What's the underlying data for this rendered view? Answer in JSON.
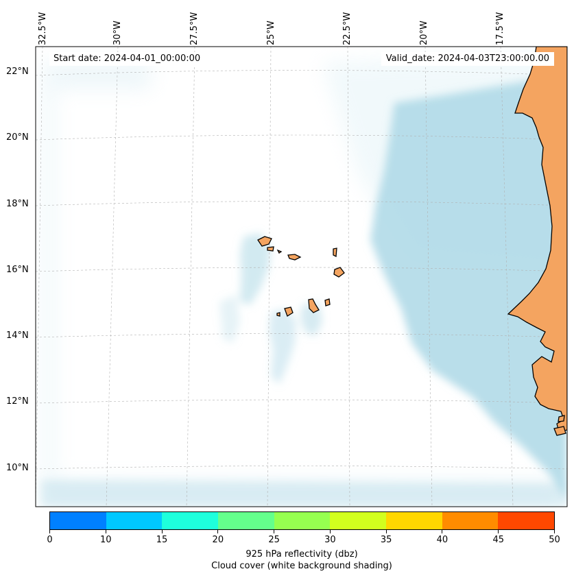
{
  "map": {
    "start_date": "Start date: 2024-04-01_00:00:00",
    "valid_date": "Valid_date: 2024-04-03T23:00:00.00",
    "longitude_labels": [
      "32.5°W",
      "30°W",
      "27.5°W",
      "25°W",
      "22.5°W",
      "20°W",
      "17.5°W"
    ],
    "latitude_labels": [
      "22°N",
      "20°N",
      "18°N",
      "16°N",
      "14°N",
      "12°N",
      "10°N"
    ],
    "colors": {
      "land": "#f4a460",
      "cloud_shading": "#add8e6",
      "coastline": "#000000",
      "gridline": "#b0b0b0"
    }
  },
  "colorbar": {
    "ticks": [
      "0",
      "10",
      "15",
      "20",
      "25",
      "30",
      "35",
      "40",
      "45",
      "50"
    ],
    "colors": [
      "#0080ff",
      "#00c8ff",
      "#1effdc",
      "#64ff8c",
      "#96ff50",
      "#d2ff1e",
      "#ffd700",
      "#ff8c00",
      "#ff4800"
    ],
    "label": "925 hPa reflectivity (dbz)",
    "sublabel": "Cloud cover (white background shading)"
  }
}
